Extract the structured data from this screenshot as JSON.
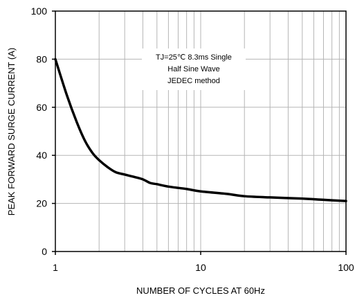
{
  "chart_data": {
    "type": "line",
    "title": "",
    "xlabel": "NUMBER OF CYCLES AT 60Hz",
    "ylabel": "PEAK FORWARD SURGE CURRENT (A)",
    "x_scale": "log",
    "xlim": [
      1,
      100
    ],
    "ylim": [
      0,
      100
    ],
    "x_ticks": [
      1,
      10,
      100
    ],
    "x_tick_labels": [
      "1",
      "10",
      "100"
    ],
    "y_ticks": [
      0,
      20,
      40,
      60,
      80,
      100
    ],
    "y_tick_labels": [
      "0",
      "20",
      "40",
      "60",
      "80",
      "100"
    ],
    "grid": true,
    "annotation": [
      "TJ=25℃ 8.3ms Single",
      "Half  Sine Wave",
      "JEDEC method"
    ],
    "series": [
      {
        "x": [
          1,
          1.2,
          1.4,
          1.6,
          1.8,
          2,
          2.3,
          2.6,
          3,
          3.5,
          4,
          4.5,
          5,
          6,
          8,
          10,
          15,
          20,
          30,
          50,
          70,
          100
        ],
        "values": [
          80,
          65,
          54,
          46,
          41,
          38,
          35,
          33,
          32,
          31,
          30,
          28.5,
          28,
          27,
          26,
          25,
          24,
          23,
          22.5,
          22,
          21.5,
          21
        ]
      }
    ]
  }
}
